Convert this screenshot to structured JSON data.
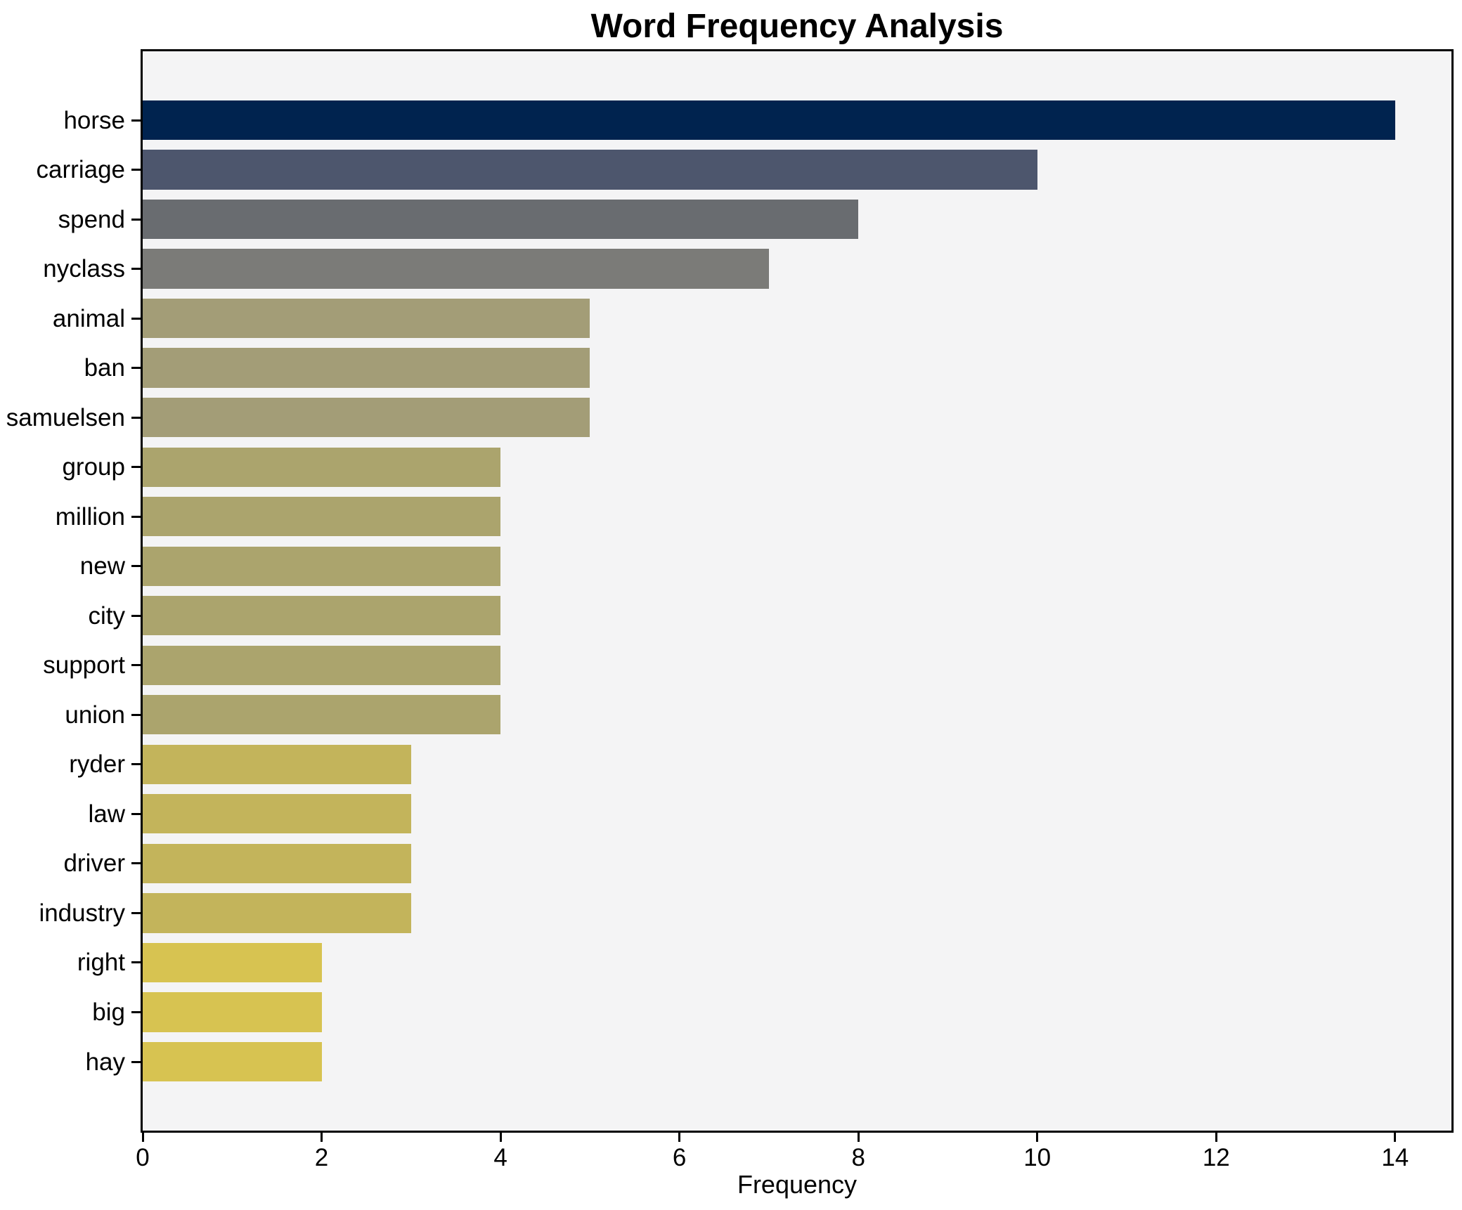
{
  "chart_data": {
    "type": "bar",
    "orientation": "horizontal",
    "title": "Word Frequency Analysis",
    "xlabel": "Frequency",
    "ylabel": "",
    "xlim": [
      0,
      14.63
    ],
    "xticks": [
      0,
      2,
      4,
      6,
      8,
      10,
      12,
      14
    ],
    "grid": false,
    "legend": false,
    "plot_background": "#f4f4f5",
    "figure_background": "#ffffff",
    "frame_color": "#000000",
    "categories": [
      "horse",
      "carriage",
      "spend",
      "nyclass",
      "animal",
      "ban",
      "samuelsen",
      "group",
      "million",
      "new",
      "city",
      "support",
      "union",
      "ryder",
      "law",
      "driver",
      "industry",
      "right",
      "big",
      "hay"
    ],
    "values": [
      14,
      10,
      8,
      7,
      5,
      5,
      5,
      4,
      4,
      4,
      4,
      4,
      4,
      3,
      3,
      3,
      3,
      2,
      2,
      2
    ],
    "bar_colors": [
      "#00234f",
      "#4d566d",
      "#696c70",
      "#7b7b78",
      "#a39d77",
      "#a39d77",
      "#a39d77",
      "#aba46d",
      "#aba46d",
      "#aba46d",
      "#aba46d",
      "#aba46d",
      "#aba46d",
      "#c3b45b",
      "#c3b45b",
      "#c3b45b",
      "#c3b45b",
      "#d7c351",
      "#d7c351",
      "#d7c351"
    ]
  }
}
